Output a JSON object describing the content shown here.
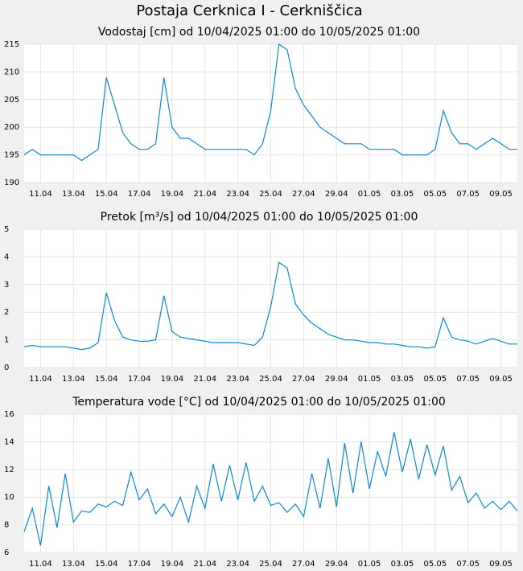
{
  "title": "Postaja Cerknica I - Cerkniščica",
  "chart_data": [
    {
      "type": "line",
      "title": "Vodostaj [cm] od 10/04/2025 01:00 do 10/05/2025 01:00",
      "color": "#0a8ad0",
      "grid": true,
      "x": [
        0,
        0.5,
        1,
        1.5,
        2,
        2.5,
        3,
        3.5,
        4,
        4.5,
        5,
        5.5,
        6,
        6.5,
        7,
        7.5,
        8,
        8.5,
        9,
        9.5,
        10,
        10.5,
        11,
        11.5,
        12,
        12.5,
        13,
        13.5,
        14,
        14.5,
        15,
        15.5,
        16,
        16.5,
        17,
        17.5,
        18,
        18.5,
        19,
        19.5,
        20,
        20.5,
        21,
        21.5,
        22,
        22.5,
        23,
        23.5,
        24,
        24.5,
        25,
        25.5,
        26,
        26.5,
        27,
        27.5,
        28,
        28.5,
        29,
        29.5,
        30
      ],
      "values": [
        195,
        196,
        195,
        195,
        195,
        195,
        195,
        194,
        195,
        196,
        209,
        204,
        199,
        197,
        196,
        196,
        197,
        209,
        200,
        198,
        198,
        197,
        196,
        196,
        196,
        196,
        196,
        196,
        195,
        197,
        203,
        215,
        214,
        207,
        204,
        202,
        200,
        199,
        198,
        197,
        197,
        197,
        196,
        196,
        196,
        196,
        195,
        195,
        195,
        195,
        196,
        203,
        199,
        197,
        197,
        196,
        197,
        198,
        197,
        196,
        196
      ],
      "xlim": [
        0,
        30
      ],
      "ylim": [
        190,
        215
      ],
      "yticks": [
        190,
        195,
        200,
        205,
        210,
        215
      ],
      "xticks": [
        {
          "value": 1,
          "label": "11.04"
        },
        {
          "value": 3,
          "label": "13.04"
        },
        {
          "value": 5,
          "label": "15.04"
        },
        {
          "value": 7,
          "label": "17.04"
        },
        {
          "value": 9,
          "label": "19.04"
        },
        {
          "value": 11,
          "label": "21.04"
        },
        {
          "value": 13,
          "label": "23.04"
        },
        {
          "value": 15,
          "label": "25.04"
        },
        {
          "value": 17,
          "label": "27.04"
        },
        {
          "value": 19,
          "label": "29.04"
        },
        {
          "value": 21,
          "label": "01.05"
        },
        {
          "value": 23,
          "label": "03.05"
        },
        {
          "value": 25,
          "label": "05.05"
        },
        {
          "value": 27,
          "label": "07.05"
        },
        {
          "value": 29,
          "label": "09.05"
        }
      ]
    },
    {
      "type": "line",
      "title": "Pretok [m³/s] od 10/04/2025 01:00 do 10/05/2025 01:00",
      "color": "#0a8ad0",
      "grid": true,
      "x": [
        0,
        0.5,
        1,
        1.5,
        2,
        2.5,
        3,
        3.5,
        4,
        4.5,
        5,
        5.5,
        6,
        6.5,
        7,
        7.5,
        8,
        8.5,
        9,
        9.5,
        10,
        10.5,
        11,
        11.5,
        12,
        12.5,
        13,
        13.5,
        14,
        14.5,
        15,
        15.5,
        16,
        16.5,
        17,
        17.5,
        18,
        18.5,
        19,
        19.5,
        20,
        20.5,
        21,
        21.5,
        22,
        22.5,
        23,
        23.5,
        24,
        24.5,
        25,
        25.5,
        26,
        26.5,
        27,
        27.5,
        28,
        28.5,
        29,
        29.5,
        30
      ],
      "values": [
        0.75,
        0.8,
        0.75,
        0.75,
        0.75,
        0.75,
        0.7,
        0.65,
        0.7,
        0.9,
        2.7,
        1.7,
        1.1,
        1.0,
        0.95,
        0.95,
        1.0,
        2.6,
        1.3,
        1.1,
        1.05,
        1.0,
        0.95,
        0.9,
        0.9,
        0.9,
        0.9,
        0.85,
        0.8,
        1.1,
        2.2,
        3.8,
        3.6,
        2.3,
        1.9,
        1.6,
        1.4,
        1.2,
        1.1,
        1.0,
        1.0,
        0.95,
        0.9,
        0.9,
        0.85,
        0.85,
        0.8,
        0.75,
        0.75,
        0.7,
        0.75,
        1.8,
        1.1,
        1.0,
        0.95,
        0.85,
        0.95,
        1.05,
        0.95,
        0.85,
        0.85
      ],
      "xlim": [
        0,
        30
      ],
      "ylim": [
        0,
        5
      ],
      "yticks": [
        0,
        1,
        2,
        3,
        4,
        5
      ],
      "xticks": [
        {
          "value": 1,
          "label": "11.04"
        },
        {
          "value": 3,
          "label": "13.04"
        },
        {
          "value": 5,
          "label": "15.04"
        },
        {
          "value": 7,
          "label": "17.04"
        },
        {
          "value": 9,
          "label": "19.04"
        },
        {
          "value": 11,
          "label": "21.04"
        },
        {
          "value": 13,
          "label": "23.04"
        },
        {
          "value": 15,
          "label": "25.04"
        },
        {
          "value": 17,
          "label": "27.04"
        },
        {
          "value": 19,
          "label": "29.04"
        },
        {
          "value": 21,
          "label": "01.05"
        },
        {
          "value": 23,
          "label": "03.05"
        },
        {
          "value": 25,
          "label": "05.05"
        },
        {
          "value": 27,
          "label": "07.05"
        },
        {
          "value": 29,
          "label": "09.05"
        }
      ]
    },
    {
      "type": "line",
      "title": "Temperatura vode [°C] od 10/04/2025 01:00 do 10/05/2025 01:00",
      "color": "#0a8ad0",
      "grid": true,
      "x": [
        0,
        0.5,
        1,
        1.5,
        2,
        2.5,
        3,
        3.5,
        4,
        4.5,
        5,
        5.5,
        6,
        6.5,
        7,
        7.5,
        8,
        8.5,
        9,
        9.5,
        10,
        10.5,
        11,
        11.5,
        12,
        12.5,
        13,
        13.5,
        14,
        14.5,
        15,
        15.5,
        16,
        16.5,
        17,
        17.5,
        18,
        18.5,
        19,
        19.5,
        20,
        20.5,
        21,
        21.5,
        22,
        22.5,
        23,
        23.5,
        24,
        24.5,
        25,
        25.5,
        26,
        26.5,
        27,
        27.5,
        28,
        28.5,
        29,
        29.5,
        30
      ],
      "values": [
        7.5,
        9.2,
        6.5,
        10.8,
        7.8,
        11.7,
        8.2,
        9.0,
        8.9,
        9.5,
        9.3,
        9.7,
        9.4,
        11.8,
        9.8,
        10.6,
        8.8,
        9.5,
        8.6,
        10.0,
        8.2,
        10.8,
        9.2,
        12.4,
        9.7,
        12.3,
        9.8,
        12.5,
        9.7,
        10.8,
        9.4,
        9.6,
        8.9,
        9.5,
        8.6,
        11.7,
        9.2,
        12.8,
        9.3,
        13.9,
        10.3,
        14.0,
        10.6,
        13.3,
        11.5,
        14.7,
        11.8,
        14.2,
        11.3,
        13.8,
        11.6,
        13.7,
        10.5,
        11.5,
        9.6,
        10.3,
        9.2,
        9.7,
        9.1,
        9.7,
        9.0
      ],
      "xlim": [
        0,
        30
      ],
      "ylim": [
        6,
        16
      ],
      "yticks": [
        6,
        8,
        10,
        12,
        14,
        16
      ],
      "xticks": [
        {
          "value": 1,
          "label": "11.04"
        },
        {
          "value": 3,
          "label": "13.04"
        },
        {
          "value": 5,
          "label": "15.04"
        },
        {
          "value": 7,
          "label": "17.04"
        },
        {
          "value": 9,
          "label": "19.04"
        },
        {
          "value": 11,
          "label": "21.04"
        },
        {
          "value": 13,
          "label": "23.04"
        },
        {
          "value": 15,
          "label": "25.04"
        },
        {
          "value": 17,
          "label": "27.04"
        },
        {
          "value": 19,
          "label": "29.04"
        },
        {
          "value": 21,
          "label": "01.05"
        },
        {
          "value": 23,
          "label": "03.05"
        },
        {
          "value": 25,
          "label": "05.05"
        },
        {
          "value": 27,
          "label": "07.05"
        },
        {
          "value": 29,
          "label": "09.05"
        }
      ]
    }
  ]
}
